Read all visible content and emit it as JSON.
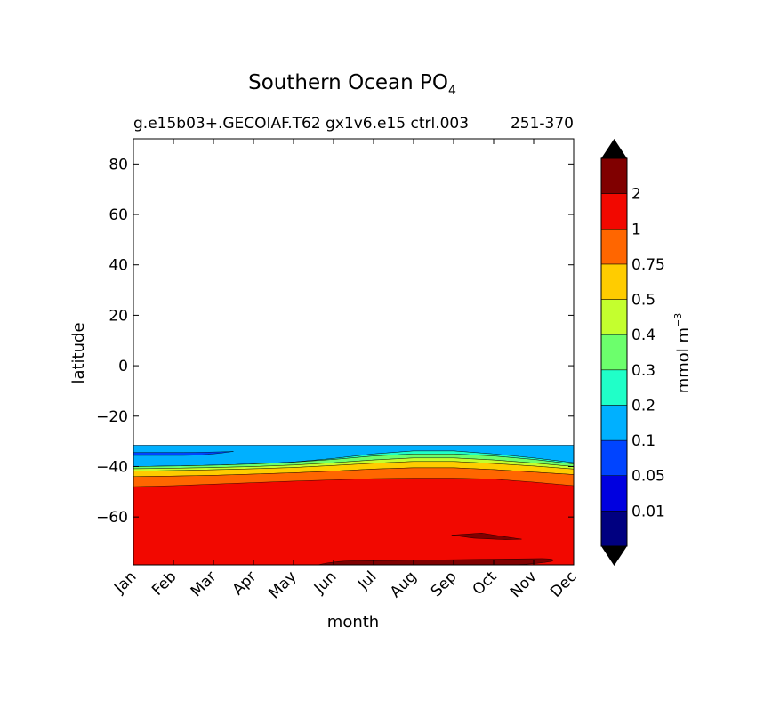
{
  "chart_data": {
    "type": "contour",
    "title_main": "Southern Ocean PO",
    "title_sub": "4",
    "subtitle_left": "g.e15b03+.GECOIAF.T62 gx1v6.e15 ctrl.003",
    "subtitle_right": "251-370",
    "xlabel": "month",
    "ylabel": "latitude",
    "categories": [
      "Jan",
      "Feb",
      "Mar",
      "Apr",
      "May",
      "Jun",
      "Jul",
      "Aug",
      "Sep",
      "Oct",
      "Nov",
      "Dec"
    ],
    "yticks": [
      {
        "value": 80,
        "label": "80"
      },
      {
        "value": 60,
        "label": "60"
      },
      {
        "value": 40,
        "label": "40"
      },
      {
        "value": 20,
        "label": "20"
      },
      {
        "value": 0,
        "label": "0"
      },
      {
        "value": -20,
        "label": "−20"
      },
      {
        "value": -40,
        "label": "−40"
      },
      {
        "value": -60,
        "label": "−60"
      }
    ],
    "ylim": [
      -79,
      90
    ],
    "data_top_lat": -31.5,
    "colorbar": {
      "label": "mmol m",
      "label_sup": "−3",
      "tick_labels": [
        "0.01",
        "0.05",
        "0.1",
        "0.2",
        "0.3",
        "0.4",
        "0.5",
        "0.75",
        "1",
        "2"
      ],
      "colors": [
        "#000080",
        "#0000e0",
        "#0044ff",
        "#00b0ff",
        "#20ffc8",
        "#6cff6c",
        "#c4ff2e",
        "#ffcc00",
        "#ff6600",
        "#f20800",
        "#800000"
      ],
      "under_color": "#000000",
      "over_color": "#000000"
    },
    "bands": [
      {
        "name": "band-0.05",
        "color": "#0044ff",
        "lower": [
          -35.6,
          -35.4,
          -34.0
        ],
        "upper": [
          -34.4,
          -34.2,
          -34.0
        ],
        "months_span": [
          0,
          2.5
        ]
      },
      {
        "name": "band-0.2",
        "color": "#20ffc8",
        "lower_lats": [
          -40.0,
          -39.8,
          -39.5,
          -39.0,
          -38.3,
          -37.2,
          -35.8,
          -35.0,
          -35.0,
          -35.8,
          -37.2,
          -39.0
        ],
        "upper_lats": [
          -40.0,
          -39.8,
          -39.5,
          -39.0,
          -38.2,
          -36.8,
          -35.0,
          -33.8,
          -33.8,
          -35.0,
          -36.6,
          -38.5
        ]
      },
      {
        "name": "band-0.3",
        "color": "#6cff6c",
        "lower_lats": [
          -40.9,
          -40.7,
          -40.4,
          -40.0,
          -39.4,
          -38.5,
          -37.4,
          -36.6,
          -36.6,
          -37.4,
          -38.6,
          -40.0
        ],
        "upper_lats": [
          -40.0,
          -39.8,
          -39.5,
          -39.0,
          -38.3,
          -37.2,
          -35.8,
          -35.0,
          -35.0,
          -35.8,
          -37.2,
          -39.0
        ]
      },
      {
        "name": "band-0.4",
        "color": "#c4ff2e",
        "lower_lats": [
          -41.8,
          -41.6,
          -41.3,
          -40.9,
          -40.4,
          -39.6,
          -38.7,
          -38.0,
          -38.0,
          -38.8,
          -39.8,
          -41.0
        ],
        "upper_lats": [
          -40.9,
          -40.7,
          -40.4,
          -40.0,
          -39.4,
          -38.5,
          -37.4,
          -36.6,
          -36.6,
          -37.4,
          -38.6,
          -40.0
        ]
      },
      {
        "name": "band-0.5",
        "color": "#ffcc00",
        "lower_lats": [
          -44.0,
          -43.8,
          -43.5,
          -43.0,
          -42.5,
          -41.8,
          -41.0,
          -40.5,
          -40.5,
          -41.2,
          -42.2,
          -43.2
        ],
        "upper_lats": [
          -41.8,
          -41.6,
          -41.3,
          -40.9,
          -40.4,
          -39.6,
          -38.7,
          -38.0,
          -38.0,
          -38.8,
          -39.8,
          -41.0
        ]
      },
      {
        "name": "band-0.75",
        "color": "#ff6600",
        "lower_lats": [
          -48.0,
          -47.6,
          -47.0,
          -46.4,
          -45.8,
          -45.3,
          -44.8,
          -44.6,
          -44.6,
          -45.0,
          -46.2,
          -47.6
        ],
        "upper_lats": [
          -44.0,
          -43.8,
          -43.5,
          -43.0,
          -42.5,
          -41.8,
          -41.0,
          -40.5,
          -40.5,
          -41.2,
          -42.2,
          -43.2
        ]
      }
    ]
  }
}
